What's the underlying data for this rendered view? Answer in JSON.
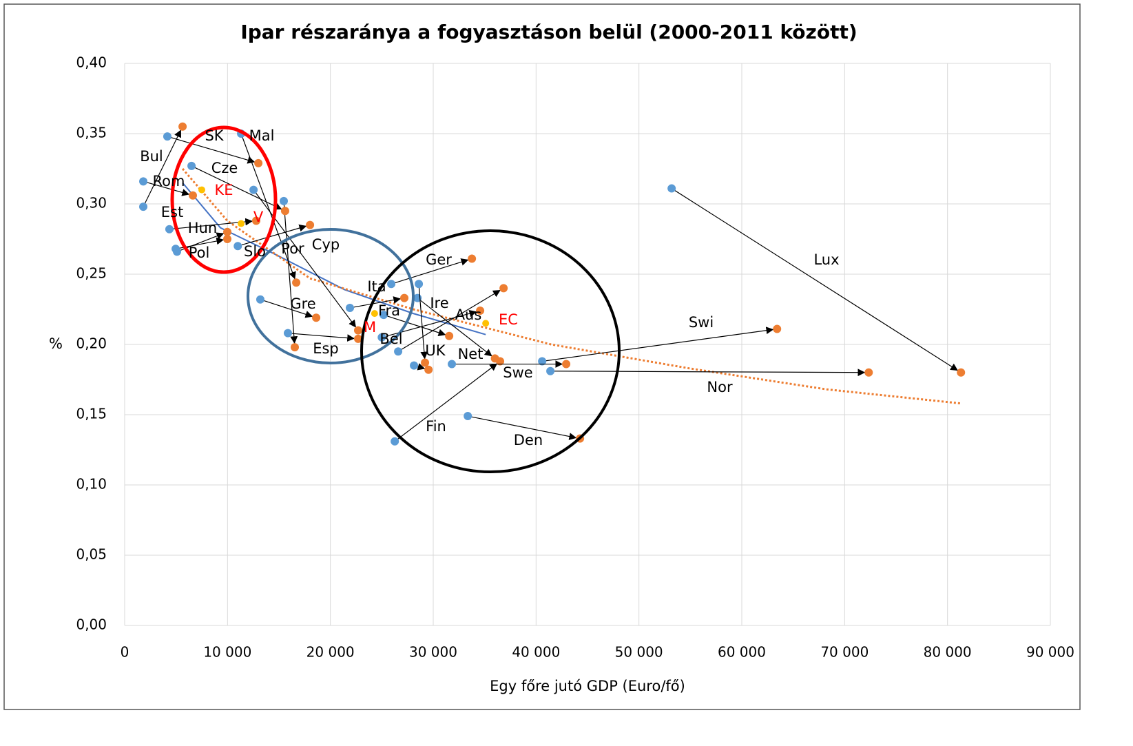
{
  "chart_data": {
    "type": "scatter",
    "title": "Ipar részaránya a fogyasztáson belül (2000-2011 között)",
    "x_label": "Egy főre jutó GDP (Euro/fő)",
    "y_label": "%",
    "start_color": "#5b9bd5",
    "end_color": "#ed7d31",
    "aggregate_color": "#ffc000",
    "aggregate_label_color": "#ff0000",
    "grid": true,
    "xlim": [
      0,
      90000
    ],
    "ylim": [
      0,
      0.4
    ],
    "xticks": [
      0,
      {
        "value": 10000,
        "label": "10 000"
      },
      {
        "value": 20000,
        "label": "20 000"
      },
      {
        "value": 30000,
        "label": "30 000"
      },
      {
        "value": 40000,
        "label": "40 000"
      },
      {
        "value": 50000,
        "label": "50 000"
      },
      {
        "value": 60000,
        "label": "60 000"
      },
      {
        "value": 70000,
        "label": "70 000"
      },
      {
        "value": 80000,
        "label": "80 000"
      },
      {
        "value": 90000,
        "label": "90 000"
      }
    ],
    "yticks": [
      {
        "value": 0,
        "label": "0,00"
      },
      {
        "value": 0.05,
        "label": "0,05"
      },
      {
        "value": 0.1,
        "label": "0,10"
      },
      {
        "value": 0.15,
        "label": "0,15"
      },
      {
        "value": 0.2,
        "label": "0,20"
      },
      {
        "value": 0.25,
        "label": "0,25"
      },
      {
        "value": 0.3,
        "label": "0,30"
      },
      {
        "value": 0.35,
        "label": "0,35"
      },
      {
        "value": 0.4,
        "label": "0,40"
      }
    ],
    "pairs": [
      {
        "name": "Lux",
        "x_start": 53180,
        "y_start": 0.311,
        "x_end": 81310,
        "y_end": 0.18
      },
      {
        "name": "Swi",
        "x_start": 40590,
        "y_start": 0.188,
        "x_end": 63430,
        "y_end": 0.211
      },
      {
        "name": "Nor",
        "x_start": 41390,
        "y_start": 0.181,
        "x_end": 72340,
        "y_end": 0.18
      },
      {
        "name": "Den",
        "x_start": 33360,
        "y_start": 0.149,
        "x_end": 44270,
        "y_end": 0.133
      },
      {
        "name": "Fin",
        "x_start": 26260,
        "y_start": 0.131,
        "x_end": 36500,
        "y_end": 0.188
      },
      {
        "name": "Swe",
        "x_start": 31810,
        "y_start": 0.186,
        "x_end": 42930,
        "y_end": 0.186
      },
      {
        "name": "UK",
        "x_start": 28130,
        "y_start": 0.185,
        "x_end": 29540,
        "y_end": 0.182
      },
      {
        "name": "Net",
        "x_start": 28470,
        "y_start": 0.233,
        "x_end": 36000,
        "y_end": 0.19
      },
      {
        "name": "Ire",
        "x_start": 28600,
        "y_start": 0.243,
        "x_end": 29200,
        "y_end": 0.187
      },
      {
        "name": "Aus",
        "x_start": 26590,
        "y_start": 0.195,
        "x_end": 36840,
        "y_end": 0.24
      },
      {
        "name": "Ger",
        "x_start": 25920,
        "y_start": 0.243,
        "x_end": 33760,
        "y_end": 0.261
      },
      {
        "name": "Ita",
        "x_start": 21900,
        "y_start": 0.226,
        "x_end": 27190,
        "y_end": 0.233
      },
      {
        "name": "Fra",
        "x_start": 25180,
        "y_start": 0.221,
        "x_end": 31550,
        "y_end": 0.206
      },
      {
        "name": "Bel",
        "x_start": 25000,
        "y_start": 0.205,
        "x_end": 34560,
        "y_end": 0.224
      },
      {
        "name": "Gre",
        "x_start": 13190,
        "y_start": 0.232,
        "x_end": 18620,
        "y_end": 0.219
      },
      {
        "name": "Esp",
        "x_start": 15870,
        "y_start": 0.208,
        "x_end": 22700,
        "y_end": 0.204
      },
      {
        "name": "Por",
        "x_start": 15470,
        "y_start": 0.302,
        "x_end": 16540,
        "y_end": 0.198
      },
      {
        "name": "Cyp",
        "x_start": 11000,
        "y_start": 0.27,
        "x_end": 18020,
        "y_end": 0.285
      },
      {
        "name": "Mal",
        "x_start": 11320,
        "y_start": 0.35,
        "x_end": 16680,
        "y_end": 0.244
      },
      {
        "name": "SK",
        "x_start": 4150,
        "y_start": 0.348,
        "x_end": 13000,
        "y_end": 0.329
      },
      {
        "name": "Cze",
        "x_start": 6500,
        "y_start": 0.327,
        "x_end": 15600,
        "y_end": 0.295
      },
      {
        "name": "Bul",
        "x_start": 1810,
        "y_start": 0.298,
        "x_end": 5630,
        "y_end": 0.355
      },
      {
        "name": "Rom",
        "x_start": 1810,
        "y_start": 0.316,
        "x_end": 6630,
        "y_end": 0.306
      },
      {
        "name": "Est",
        "x_start": 4350,
        "y_start": 0.282,
        "x_end": 12790,
        "y_end": 0.288
      },
      {
        "name": "Hun",
        "x_start": 4960,
        "y_start": 0.268,
        "x_end": 9980,
        "y_end": 0.275
      },
      {
        "name": "Pol",
        "x_start": 5090,
        "y_start": 0.266,
        "x_end": 9980,
        "y_end": 0.28
      },
      {
        "name": "Slo",
        "x_start": 12530,
        "y_start": 0.31,
        "x_end": 22700,
        "y_end": 0.21
      }
    ],
    "aggregates": [
      {
        "name": "KE",
        "x": 7500,
        "y": 0.31
      },
      {
        "name": "V",
        "x": 11320,
        "y": 0.286
      },
      {
        "name": "M",
        "x": 24300,
        "y": 0.222
      },
      {
        "name": "EC",
        "x": 35100,
        "y": 0.215
      }
    ],
    "trendlines": [
      {
        "color": "#4472c4",
        "dotted": false,
        "x": [
          5630,
          9310,
          14670,
          21370,
          28060,
          35100
        ],
        "y": [
          0.315,
          0.283,
          0.264,
          0.239,
          0.222,
          0.207
        ]
      },
      {
        "color": "#ed7d31",
        "dotted": true,
        "x": [
          5630,
          9980,
          18020,
          28060,
          41460,
          54860,
          68260,
          81310
        ],
        "y": [
          0.325,
          0.288,
          0.247,
          0.225,
          0.2,
          0.183,
          0.168,
          0.158
        ]
      }
    ]
  }
}
